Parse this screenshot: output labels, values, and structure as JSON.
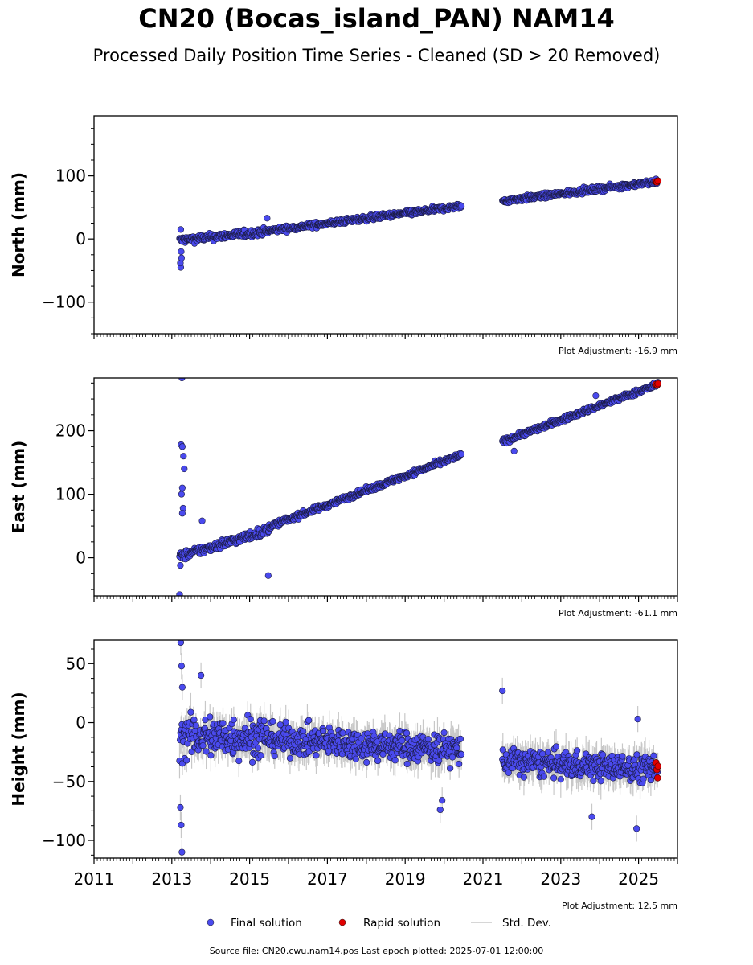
{
  "title": "CN20 (Bocas_island_PAN) NAM14",
  "subtitle": "Processed Daily Position Time Series - Cleaned (SD > 20 Removed)",
  "source_note": "Source file: CN20.cwu.nam14.pos  Last epoch plotted: 2025-07-01 12:00:00",
  "colors": {
    "final": "#4a4aee",
    "rapid": "#e00000",
    "stddev": "#c8c8c8"
  },
  "chart_data": [
    {
      "type": "scatter",
      "panel": "north",
      "ylabel": "North (mm)",
      "adjustment_label": "Plot Adjustment: -16.9 mm",
      "xlim": [
        2011.0,
        2026.0
      ],
      "ylim": [
        -150,
        195
      ],
      "yticks": [
        -100,
        0,
        100
      ],
      "x_tick_labels_shown": false,
      "series": [
        {
          "name": "Final solution",
          "segments": [
            {
              "start": 2013.2,
              "end": 2015.5,
              "y_start": -2,
              "y_end": 12,
              "scatter": 4
            },
            {
              "start": 2015.5,
              "end": 2020.45,
              "y_start": 13,
              "y_end": 52,
              "scatter": 3
            },
            {
              "start": 2021.5,
              "end": 2025.5,
              "y_start": 60,
              "y_end": 91,
              "scatter": 3
            }
          ],
          "outliers": [
            {
              "x": 2013.23,
              "y": -45
            },
            {
              "x": 2013.22,
              "y": -38
            },
            {
              "x": 2013.25,
              "y": -30
            },
            {
              "x": 2013.24,
              "y": -20
            },
            {
              "x": 2013.23,
              "y": 15
            },
            {
              "x": 2015.45,
              "y": 33
            }
          ]
        },
        {
          "name": "Rapid solution",
          "points": [
            {
              "x": 2025.44,
              "y": 91
            },
            {
              "x": 2025.47,
              "y": 90
            },
            {
              "x": 2025.5,
              "y": 92
            }
          ]
        }
      ]
    },
    {
      "type": "scatter",
      "panel": "east",
      "ylabel": "East (mm)",
      "adjustment_label": "Plot Adjustment: -61.1 mm",
      "xlim": [
        2011.0,
        2026.0
      ],
      "ylim": [
        -60,
        283
      ],
      "yticks": [
        0,
        100,
        200
      ],
      "x_tick_labels_shown": false,
      "series": [
        {
          "name": "Final solution",
          "segments": [
            {
              "start": 2013.2,
              "end": 2015.5,
              "y_start": 2,
              "y_end": 44,
              "scatter": 5
            },
            {
              "start": 2015.5,
              "end": 2020.45,
              "y_start": 49,
              "y_end": 162,
              "scatter": 3
            },
            {
              "start": 2021.5,
              "end": 2025.5,
              "y_start": 183,
              "y_end": 273,
              "scatter": 3
            }
          ],
          "outliers": [
            {
              "x": 2013.26,
              "y": 283
            },
            {
              "x": 2013.24,
              "y": 178
            },
            {
              "x": 2013.27,
              "y": 175
            },
            {
              "x": 2013.3,
              "y": 160
            },
            {
              "x": 2013.32,
              "y": 140
            },
            {
              "x": 2013.27,
              "y": 110
            },
            {
              "x": 2013.25,
              "y": 100
            },
            {
              "x": 2013.29,
              "y": 78
            },
            {
              "x": 2013.27,
              "y": 70
            },
            {
              "x": 2013.2,
              "y": -58
            },
            {
              "x": 2013.22,
              "y": -12
            },
            {
              "x": 2013.78,
              "y": 58
            },
            {
              "x": 2015.48,
              "y": -28
            },
            {
              "x": 2021.8,
              "y": 168
            },
            {
              "x": 2023.9,
              "y": 255
            }
          ]
        },
        {
          "name": "Rapid solution",
          "points": [
            {
              "x": 2025.44,
              "y": 273
            },
            {
              "x": 2025.48,
              "y": 272
            },
            {
              "x": 2025.5,
              "y": 274
            }
          ]
        }
      ]
    },
    {
      "type": "scatter",
      "panel": "height",
      "ylabel": "Height (mm)",
      "adjustment_label": "Plot Adjustment: 12.5 mm",
      "xlim": [
        2011.0,
        2026.0
      ],
      "ylim": [
        -115,
        70
      ],
      "yticks": [
        -100,
        -50,
        0,
        50
      ],
      "xticks": [
        2011,
        2013,
        2015,
        2017,
        2019,
        2021,
        2023,
        2025
      ],
      "x_tick_labels_shown": true,
      "series": [
        {
          "name": "Final solution",
          "segments": [
            {
              "start": 2013.2,
              "end": 2015.5,
              "y_start": -12,
              "y_end": -12,
              "scatter": 13
            },
            {
              "start": 2015.5,
              "end": 2020.45,
              "y_start": -14,
              "y_end": -23,
              "scatter": 9
            },
            {
              "start": 2021.5,
              "end": 2025.5,
              "y_start": -33,
              "y_end": -40,
              "scatter": 8
            }
          ],
          "outliers": [
            {
              "x": 2013.23,
              "y": 68
            },
            {
              "x": 2013.25,
              "y": 48
            },
            {
              "x": 2013.27,
              "y": 30
            },
            {
              "x": 2013.22,
              "y": -72
            },
            {
              "x": 2013.24,
              "y": -87
            },
            {
              "x": 2013.26,
              "y": -110
            },
            {
              "x": 2013.75,
              "y": 40
            },
            {
              "x": 2019.9,
              "y": -74
            },
            {
              "x": 2019.95,
              "y": -66
            },
            {
              "x": 2021.5,
              "y": 27
            },
            {
              "x": 2023.8,
              "y": -80
            },
            {
              "x": 2024.95,
              "y": -90
            },
            {
              "x": 2024.98,
              "y": 3
            }
          ]
        },
        {
          "name": "Rapid solution",
          "points": [
            {
              "x": 2025.45,
              "y": -34
            },
            {
              "x": 2025.47,
              "y": -40
            },
            {
              "x": 2025.49,
              "y": -47
            },
            {
              "x": 2025.5,
              "y": -37
            }
          ]
        }
      ]
    }
  ],
  "legend": {
    "placement": "bottom-center",
    "items": [
      {
        "label": "Final solution",
        "kind": "marker",
        "color": "#4a4aee"
      },
      {
        "label": "Rapid solution",
        "kind": "marker",
        "color": "#e00000"
      },
      {
        "label": "Std. Dev.",
        "kind": "line",
        "color": "#c8c8c8"
      }
    ]
  }
}
